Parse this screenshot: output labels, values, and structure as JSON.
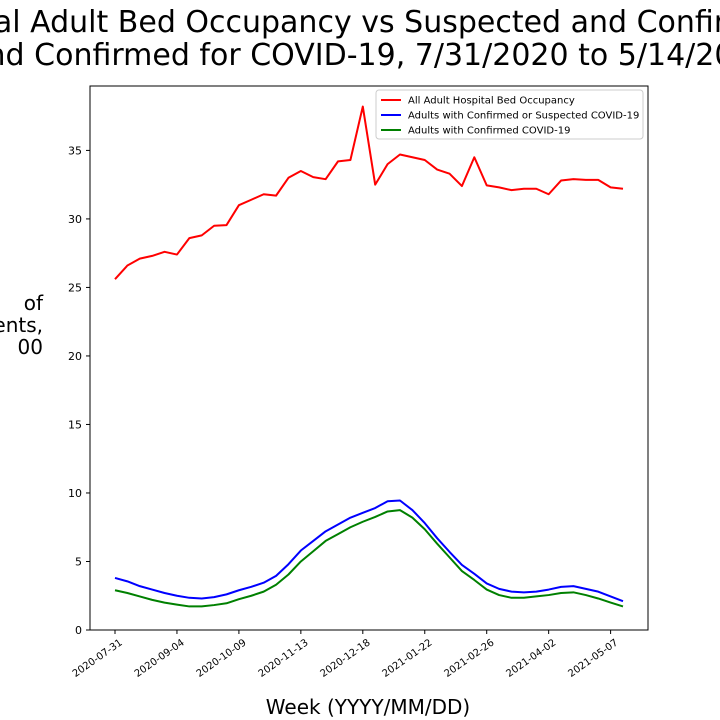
{
  "chart_data": {
    "type": "line",
    "title_lines": [
      "al Adult Bed Occupancy vs Suspected and Confir",
      "nd Confirmed for COVID-19, 7/31/2020 to 5/14/20"
    ],
    "ylabel_lines": [
      "of",
      "ents,",
      "00"
    ],
    "xlabel": "Week (YYYY/MM/DD)",
    "x": [
      "2020-07-31",
      "2020-08-07",
      "2020-08-14",
      "2020-08-21",
      "2020-08-28",
      "2020-09-04",
      "2020-09-11",
      "2020-09-18",
      "2020-09-25",
      "2020-10-02",
      "2020-10-09",
      "2020-10-16",
      "2020-10-23",
      "2020-10-30",
      "2020-11-06",
      "2020-11-13",
      "2020-11-20",
      "2020-11-27",
      "2020-12-04",
      "2020-12-11",
      "2020-12-18",
      "2020-12-25",
      "2021-01-01",
      "2021-01-08",
      "2021-01-15",
      "2021-01-22",
      "2021-01-29",
      "2021-02-05",
      "2021-02-12",
      "2021-02-19",
      "2021-02-26",
      "2021-03-05",
      "2021-03-12",
      "2021-03-19",
      "2021-03-26",
      "2021-04-02",
      "2021-04-09",
      "2021-04-16",
      "2021-04-23",
      "2021-04-30",
      "2021-05-07",
      "2021-05-14"
    ],
    "xticks": [
      "2020-07-31",
      "2020-09-04",
      "2020-10-09",
      "2020-11-13",
      "2020-12-18",
      "2021-01-22",
      "2021-02-26",
      "2021-04-02",
      "2021-05-07"
    ],
    "yticks": [
      0,
      5,
      10,
      15,
      20,
      25,
      30,
      35
    ],
    "ylim": [
      0,
      39.7
    ],
    "legend_position": "top-right",
    "grid": false,
    "series": [
      {
        "name": "All Adult Hospital Bed Occupancy",
        "color": "#ff0000",
        "values": [
          25.6,
          26.6,
          27.1,
          27.3,
          27.6,
          27.4,
          28.6,
          28.8,
          29.5,
          29.55,
          31.0,
          31.4,
          31.8,
          31.7,
          33.0,
          33.5,
          33.05,
          32.9,
          34.2,
          34.3,
          38.2,
          32.5,
          34.0,
          34.7,
          34.5,
          34.3,
          33.6,
          33.3,
          32.4,
          34.5,
          32.45,
          32.3,
          32.1,
          32.2,
          32.2,
          31.8,
          32.8,
          32.9,
          32.85,
          32.85,
          32.3,
          32.2
        ]
      },
      {
        "name": "Adults with Confirmed or Suspected COVID-19",
        "color": "#0000ff",
        "values": [
          3.8,
          3.55,
          3.2,
          2.95,
          2.7,
          2.5,
          2.35,
          2.3,
          2.4,
          2.6,
          2.9,
          3.15,
          3.45,
          3.95,
          4.8,
          5.8,
          6.5,
          7.2,
          7.7,
          8.2,
          8.55,
          8.9,
          9.4,
          9.45,
          8.75,
          7.8,
          6.7,
          5.7,
          4.75,
          4.1,
          3.4,
          3.0,
          2.8,
          2.75,
          2.8,
          2.95,
          3.15,
          3.2,
          3.0,
          2.8,
          2.45,
          2.1
        ]
      },
      {
        "name": "Adults with Confirmed COVID-19",
        "color": "#008000",
        "values": [
          2.9,
          2.7,
          2.45,
          2.2,
          2.0,
          1.85,
          1.72,
          1.72,
          1.82,
          1.95,
          2.25,
          2.5,
          2.8,
          3.3,
          4.05,
          5.0,
          5.75,
          6.5,
          7.0,
          7.5,
          7.9,
          8.25,
          8.65,
          8.75,
          8.2,
          7.35,
          6.3,
          5.3,
          4.3,
          3.65,
          2.95,
          2.55,
          2.35,
          2.35,
          2.45,
          2.55,
          2.7,
          2.75,
          2.55,
          2.3,
          2.0,
          1.72
        ]
      }
    ]
  }
}
